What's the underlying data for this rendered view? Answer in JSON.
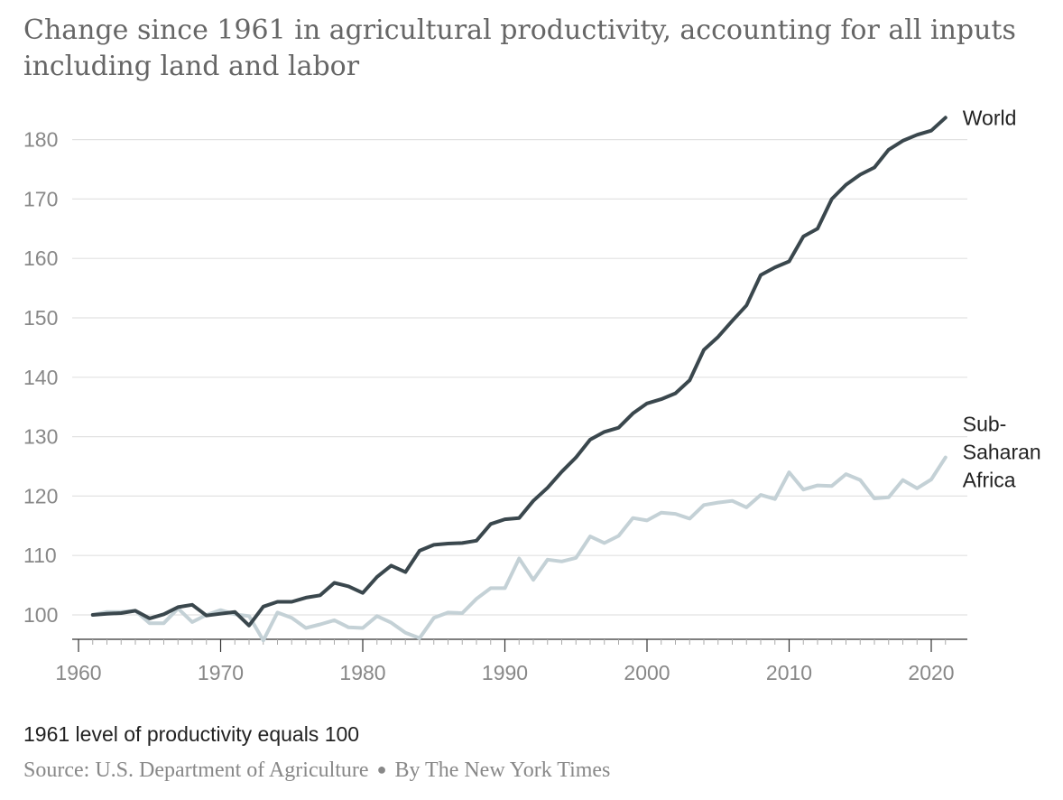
{
  "chart_data": {
    "type": "line",
    "title": "Change since 1961 in agricultural productivity, accounting for all inputs including land and labor",
    "note": "1961 level of productivity equals 100",
    "source_label": "Source:",
    "source": "U.S. Department of Agriculture",
    "byline": "By The New York Times",
    "xlim": [
      1960,
      2022
    ],
    "ylim": [
      95,
      185
    ],
    "x_ticks": [
      1960,
      1970,
      1980,
      1990,
      2000,
      2010,
      2020
    ],
    "y_ticks": [
      100,
      110,
      120,
      130,
      140,
      150,
      160,
      170,
      180
    ],
    "grid": true,
    "x": [
      1961,
      1962,
      1963,
      1964,
      1965,
      1966,
      1967,
      1968,
      1969,
      1970,
      1971,
      1972,
      1973,
      1974,
      1975,
      1976,
      1977,
      1978,
      1979,
      1980,
      1981,
      1982,
      1983,
      1984,
      1985,
      1986,
      1987,
      1988,
      1989,
      1990,
      1991,
      1992,
      1993,
      1994,
      1995,
      1996,
      1997,
      1998,
      1999,
      2000,
      2001,
      2002,
      2003,
      2004,
      2005,
      2006,
      2007,
      2008,
      2009,
      2010,
      2011,
      2012,
      2013,
      2014,
      2015,
      2016,
      2017,
      2018,
      2019,
      2020,
      2021
    ],
    "series": [
      {
        "name": "World",
        "label_lines": [
          "World"
        ],
        "color": "#3a474d",
        "values": [
          100,
          100.2,
          100.3,
          100.7,
          99.4,
          100.1,
          101.3,
          101.7,
          99.9,
          100.2,
          100.5,
          98.2,
          101.4,
          102.2,
          102.2,
          102.9,
          103.3,
          105.4,
          104.8,
          103.7,
          106.4,
          108.3,
          107.2,
          110.8,
          111.8,
          112.0,
          112.1,
          112.5,
          115.3,
          116.1,
          116.3,
          119.2,
          121.4,
          124.1,
          126.5,
          129.5,
          130.8,
          131.5,
          133.9,
          135.6,
          136.3,
          137.3,
          139.5,
          144.6,
          146.8,
          149.5,
          152.1,
          157.2,
          158.5,
          159.5,
          163.7,
          165.0,
          170.0,
          172.4,
          174.1,
          175.3,
          178.3,
          179.8,
          180.8,
          181.5,
          183.7
        ]
      },
      {
        "name": "Sub-Saharan Africa",
        "label_lines": [
          "Sub-",
          "Saharan",
          "Africa"
        ],
        "color": "#c4d1d6",
        "values": [
          100,
          100.5,
          100.5,
          100.7,
          98.6,
          98.6,
          101.1,
          98.8,
          100.0,
          100.8,
          100.1,
          99.8,
          95.7,
          100.4,
          99.5,
          97.8,
          98.4,
          99.1,
          97.9,
          97.8,
          99.8,
          98.7,
          97.0,
          96.1,
          99.5,
          100.4,
          100.3,
          102.7,
          104.5,
          104.5,
          109.5,
          105.9,
          109.3,
          109.0,
          109.6,
          113.2,
          112.1,
          113.3,
          116.3,
          115.9,
          117.2,
          117.0,
          116.2,
          118.5,
          118.9,
          119.2,
          118.1,
          120.2,
          119.5,
          124.0,
          121.1,
          121.8,
          121.7,
          123.7,
          122.7,
          119.6,
          119.8,
          122.7,
          121.3,
          122.8,
          126.5
        ]
      }
    ]
  }
}
